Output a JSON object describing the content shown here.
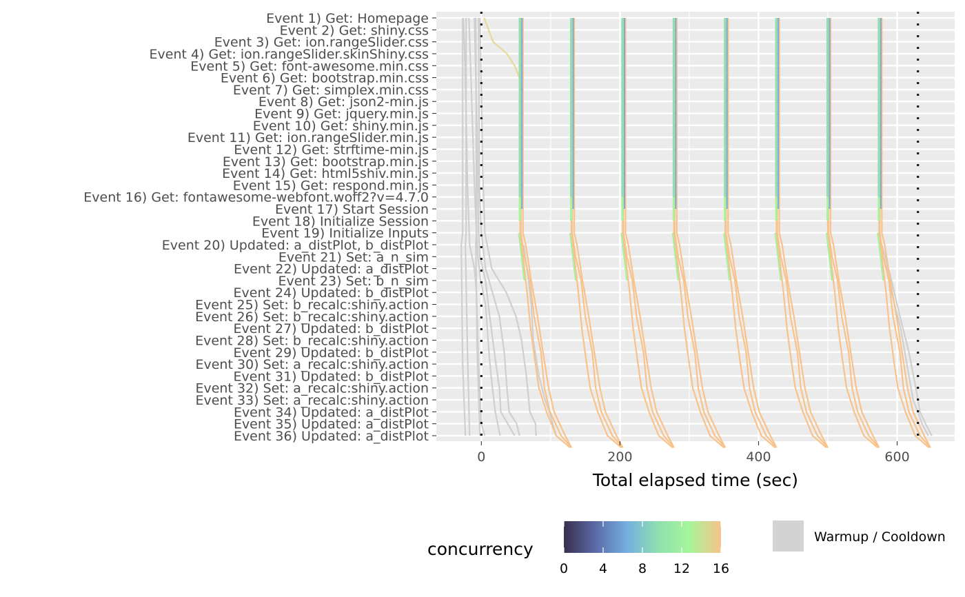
{
  "chart_data": {
    "type": "line",
    "xlabel": "Total elapsed time (sec)",
    "xlim": [
      -65,
      683
    ],
    "x_ticks": [
      "0",
      "200",
      "400",
      "600"
    ],
    "x_tick_values": [
      0,
      200,
      400,
      600
    ],
    "x_minor_ticks": [
      100,
      300,
      500
    ],
    "grid": true,
    "events": [
      "Event 1) Get: Homepage",
      "Event 2) Get: shiny.css",
      "Event 3) Get: ion.rangeSlider.css",
      "Event 4) Get: ion.rangeSlider.skinShiny.css",
      "Event 5) Get: font-awesome.min.css",
      "Event 6) Get: bootstrap.min.css",
      "Event 7) Get: simplex.min.css",
      "Event 8) Get: json2-min.js",
      "Event 9) Get: jquery.min.js",
      "Event 10) Get: shiny.min.js",
      "Event 11) Get: ion.rangeSlider.min.js",
      "Event 12) Get: strftime-min.js",
      "Event 13) Get: bootstrap.min.js",
      "Event 14) Get: html5shiv.min.js",
      "Event 15) Get: respond.min.js",
      "Event 16) Get: fontawesome-webfont.woff2?v=4.7.0",
      "Event 17) Start Session",
      "Event 18) Initialize Session",
      "Event 19) Initialize Inputs",
      "Event 20) Updated: a_distPlot, b_distPlot",
      "Event 21) Set: a_n_sim",
      "Event 22) Updated: a_distPlot",
      "Event 23) Set: b_n_sim",
      "Event 24) Updated: b_distPlot",
      "Event 25) Set: b_recalc:shiny.action",
      "Event 26) Set: b_recalc:shiny.action",
      "Event 27) Updated: b_distPlot",
      "Event 28) Set: b_recalc:shiny.action",
      "Event 29) Updated: b_distPlot",
      "Event 30) Set: a_recalc:shiny.action",
      "Event 31) Updated: b_distPlot",
      "Event 32) Set: a_recalc:shiny.action",
      "Event 33) Set: a_recalc:shiny.action",
      "Event 34) Updated: a_distPlot",
      "Event 35) Updated: a_distPlot",
      "Event 36) Updated: a_distPlot"
    ],
    "vlines": [
      0,
      630
    ],
    "sessions": [
      {
        "c1": "#8ecae6",
        "p": [
          [
            -27,
            0
          ],
          [
            -27,
            18
          ],
          [
            -29,
            19
          ],
          [
            -27,
            29
          ],
          [
            -23,
            35
          ]
        ],
        "color": "#cfcfcf"
      },
      {
        "c1": "#8ecae6",
        "p": [
          [
            -22,
            0
          ],
          [
            -22,
            18
          ],
          [
            -23,
            19
          ],
          [
            -20,
            28
          ],
          [
            -17,
            35
          ]
        ],
        "color": "#cfcfcf"
      },
      {
        "c1": "#8ecae6",
        "p": [
          [
            -8,
            0
          ],
          [
            -7,
            18
          ],
          [
            -8,
            19
          ],
          [
            -6,
            28
          ],
          [
            -2,
            35
          ]
        ],
        "color": "#cfcfcf"
      },
      {
        "p": [
          [
            -26,
            0
          ],
          [
            -24,
            3
          ],
          [
            -22,
            8
          ],
          [
            -20,
            14
          ],
          [
            -17,
            19
          ],
          [
            -10,
            21
          ],
          [
            -7,
            23
          ],
          [
            -6,
            25
          ],
          [
            -4,
            29
          ],
          [
            0,
            34
          ],
          [
            5,
            35
          ]
        ],
        "color": "#cfcfcf"
      },
      {
        "p": [
          [
            -18,
            0
          ],
          [
            -15,
            5
          ],
          [
            -10,
            14
          ],
          [
            -7,
            18
          ],
          [
            -5,
            20
          ],
          [
            -1,
            22
          ],
          [
            6,
            24
          ],
          [
            11,
            28
          ],
          [
            14,
            30
          ],
          [
            20,
            33
          ],
          [
            27,
            35
          ]
        ],
        "color": "#cfcfcf"
      },
      {
        "p": [
          [
            -10,
            0
          ],
          [
            -6,
            10
          ],
          [
            -4,
            18
          ],
          [
            -2,
            20
          ],
          [
            6,
            22
          ],
          [
            12,
            25
          ],
          [
            21,
            29
          ],
          [
            26,
            31
          ],
          [
            28,
            33
          ],
          [
            38,
            34
          ],
          [
            48,
            35
          ]
        ],
        "color": "#cfcfcf"
      },
      {
        "p": [
          [
            -4,
            0
          ],
          [
            -3,
            14
          ],
          [
            0,
            18
          ],
          [
            6,
            21
          ],
          [
            16,
            23
          ],
          [
            26,
            25
          ],
          [
            33,
            28
          ],
          [
            37,
            31
          ],
          [
            40,
            33
          ],
          [
            51,
            34
          ],
          [
            55,
            35
          ]
        ],
        "color": "#cfcfcf"
      },
      {
        "p": [
          [
            -2,
            0
          ],
          [
            0,
            6
          ],
          [
            2,
            13
          ],
          [
            5,
            18
          ],
          [
            15,
            21
          ],
          [
            36,
            23
          ],
          [
            50,
            25
          ],
          [
            58,
            27
          ],
          [
            65,
            30
          ],
          [
            70,
            33
          ],
          [
            78,
            34
          ],
          [
            79,
            35
          ]
        ],
        "color": "#cfcfcf"
      },
      {
        "p": [
          [
            61,
            19
          ],
          [
            68,
            22
          ],
          [
            72,
            24
          ],
          [
            75,
            27
          ],
          [
            83,
            30
          ],
          [
            92,
            32
          ],
          [
            98,
            33
          ],
          [
            108,
            35
          ]
        ],
        "color": "#cfcfcf"
      },
      {
        "p": [
          [
            4,
            0
          ],
          [
            17,
            2
          ],
          [
            37,
            3
          ],
          [
            48,
            4
          ],
          [
            55,
            5
          ]
        ],
        "color": "#e8d89a"
      },
      {
        "p": [
          [
            573,
            0
          ],
          [
            575,
            1
          ],
          [
            577,
            2
          ],
          [
            575,
            16
          ],
          [
            575,
            19
          ]
        ],
        "color": "#cfcfcf"
      },
      {
        "p": [
          [
            575,
            19
          ],
          [
            585,
            21
          ],
          [
            592,
            23
          ],
          [
            605,
            26
          ],
          [
            614,
            29
          ],
          [
            623,
            32
          ],
          [
            630,
            33
          ],
          [
            636,
            34
          ],
          [
            645,
            35
          ]
        ],
        "color": "#cfcfcf"
      },
      {
        "p": [
          [
            578,
            19
          ],
          [
            592,
            22
          ],
          [
            604,
            25
          ],
          [
            617,
            28
          ],
          [
            627,
            31
          ],
          [
            633,
            33
          ],
          [
            641,
            34
          ],
          [
            650,
            35
          ]
        ],
        "color": "#cfcfcf"
      }
    ],
    "waves": [
      0,
      74,
      148,
      222,
      296,
      370,
      444,
      518
    ],
    "wave_lines": [
      {
        "p": [
          [
            56,
            0
          ],
          [
            56,
            5
          ],
          [
            56,
            18
          ],
          [
            60,
            20
          ],
          [
            66,
            23
          ],
          [
            71,
            26
          ],
          [
            78,
            29
          ],
          [
            83,
            31
          ],
          [
            94,
            33
          ],
          [
            108,
            35
          ],
          [
            128,
            36
          ]
        ],
        "color": "#f8c28a"
      },
      {
        "p": [
          [
            57,
            0
          ],
          [
            57,
            5
          ],
          [
            57,
            18
          ],
          [
            62,
            20
          ],
          [
            70,
            22
          ],
          [
            76,
            25
          ],
          [
            86,
            28
          ],
          [
            91,
            31
          ],
          [
            99,
            33
          ],
          [
            115,
            35
          ],
          [
            130,
            36
          ]
        ],
        "color": "#f8c28a"
      },
      {
        "p": [
          [
            60,
            0
          ],
          [
            60,
            5
          ],
          [
            60,
            17
          ],
          [
            60,
            18
          ],
          [
            64,
            19
          ],
          [
            72,
            22
          ],
          [
            81,
            25
          ],
          [
            89,
            28
          ],
          [
            97,
            31
          ],
          [
            105,
            33
          ],
          [
            121,
            35
          ],
          [
            130,
            36
          ]
        ],
        "color": "#f8c28a"
      },
      {
        "p": [
          [
            54,
            18
          ],
          [
            58,
            20
          ],
          [
            62,
            22
          ]
        ],
        "color": "#a6f0a0"
      }
    ],
    "legend": {
      "title": "concurrency",
      "ticks": [
        "0",
        "4",
        "8",
        "12",
        "16"
      ],
      "tick_values": [
        0,
        4,
        8,
        12,
        16
      ],
      "colors": [
        "#3a2f4f",
        "#5a6aa8",
        "#74aee0",
        "#8fe0b0",
        "#a6f59a",
        "#f8c28a"
      ],
      "key_label": "Warmup / Cooldown",
      "key_color": "#d3d3d3"
    },
    "panel_bg": "#ebebeb",
    "grid_color": "#ffffff"
  }
}
